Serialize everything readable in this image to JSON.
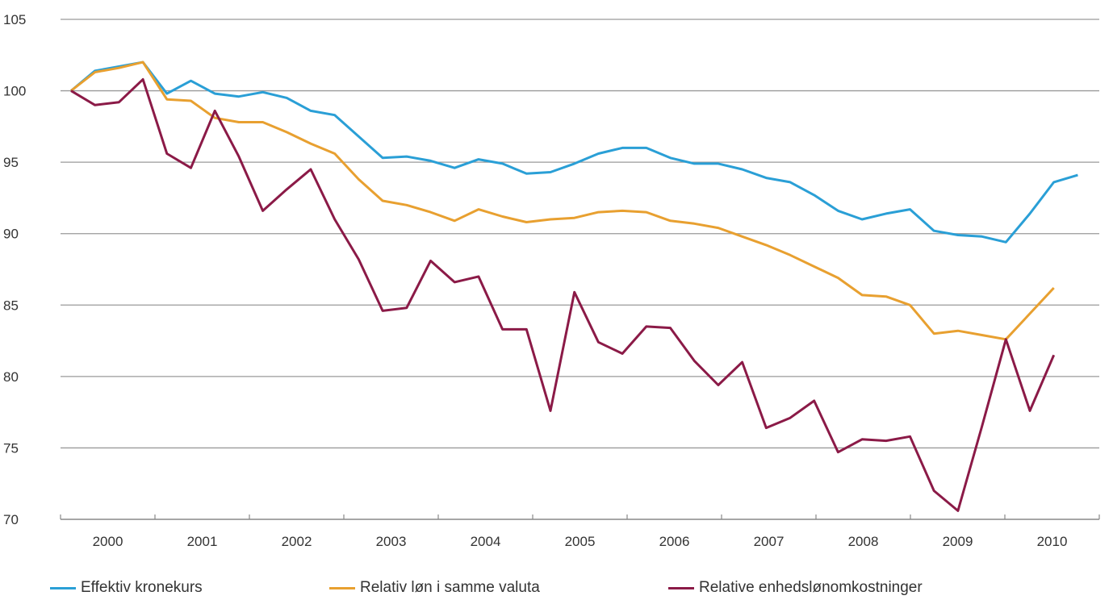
{
  "chart_data": {
    "type": "line",
    "title": "",
    "xlabel": "",
    "ylabel": "",
    "ylim": [
      70,
      105
    ],
    "yticks": [
      70,
      75,
      80,
      85,
      90,
      95,
      100,
      105
    ],
    "xtick_labels": [
      "2000",
      "2001",
      "2002",
      "2003",
      "2004",
      "2005",
      "2006",
      "2007",
      "2008",
      "2009",
      "2010"
    ],
    "grid": "horizontal",
    "legend_position": "bottom",
    "series": [
      {
        "name": "Effektiv kronekurs",
        "color": "#2a9fd6",
        "values": [
          100.0,
          101.4,
          101.7,
          102.0,
          99.8,
          100.7,
          99.8,
          99.6,
          99.9,
          99.5,
          98.6,
          98.3,
          96.8,
          95.3,
          95.4,
          95.1,
          94.6,
          95.2,
          94.9,
          94.2,
          94.3,
          94.9,
          95.6,
          96.0,
          96.0,
          95.3,
          94.9,
          94.9,
          94.5,
          93.9,
          93.6,
          92.7,
          91.6,
          91.0,
          91.4,
          91.7,
          90.2,
          89.9,
          89.8,
          89.4,
          91.4,
          93.6,
          94.1
        ]
      },
      {
        "name": "Relativ løn i samme valuta",
        "color": "#e8a030",
        "values": [
          100.0,
          101.3,
          101.6,
          102.0,
          99.4,
          99.3,
          98.1,
          97.8,
          97.8,
          97.1,
          96.3,
          95.6,
          93.8,
          92.3,
          92.0,
          91.5,
          90.9,
          91.7,
          91.2,
          90.8,
          91.0,
          91.1,
          91.5,
          91.6,
          91.5,
          90.9,
          90.7,
          90.4,
          89.8,
          89.2,
          88.5,
          87.7,
          86.9,
          85.7,
          85.6,
          85.0,
          83.0,
          83.2,
          82.9,
          82.6,
          84.4,
          86.2
        ]
      },
      {
        "name": "Relative enhedslønomkostninger",
        "color": "#8b1a47",
        "values": [
          100.0,
          99.0,
          99.2,
          100.8,
          95.6,
          94.6,
          98.6,
          95.4,
          91.6,
          93.1,
          94.5,
          91.0,
          88.2,
          84.6,
          84.8,
          88.1,
          86.6,
          87.0,
          83.3,
          83.3,
          77.6,
          85.9,
          82.4,
          81.6,
          83.5,
          83.4,
          81.1,
          79.4,
          81.0,
          76.4,
          77.1,
          78.3,
          74.7,
          75.6,
          75.5,
          75.8,
          72.0,
          70.6,
          76.5,
          82.6,
          77.6,
          81.5
        ]
      }
    ]
  }
}
